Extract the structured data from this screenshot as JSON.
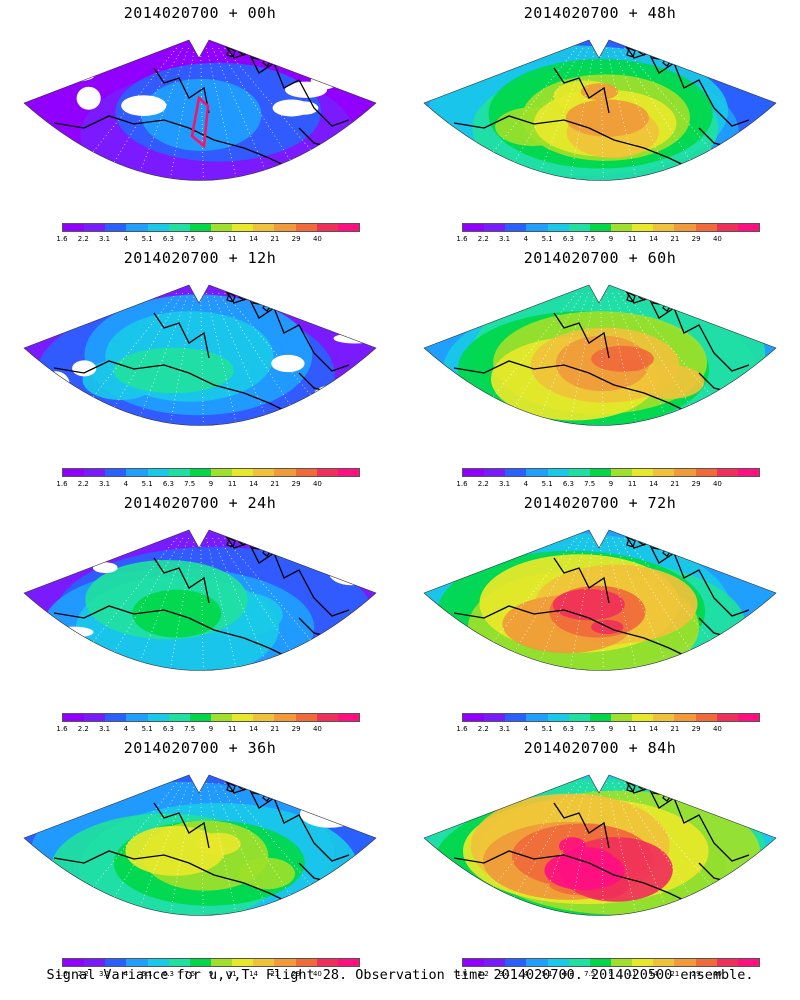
{
  "panels": [
    {
      "title": "2014020700 + 00h",
      "level": 0.1,
      "track": true
    },
    {
      "title": "2014020700 + 48h",
      "level": 0.62,
      "track": false
    },
    {
      "title": "2014020700 + 12h",
      "level": 0.22,
      "track": false
    },
    {
      "title": "2014020700 + 60h",
      "level": 0.72,
      "track": false
    },
    {
      "title": "2014020700 + 24h",
      "level": 0.34,
      "track": false
    },
    {
      "title": "2014020700 + 72h",
      "level": 0.8,
      "track": false
    },
    {
      "title": "2014020700 + 36h",
      "level": 0.46,
      "track": false
    },
    {
      "title": "2014020700 + 84h",
      "level": 0.88,
      "track": false
    }
  ],
  "colorbar": {
    "colors": [
      "#9100ff",
      "#7a1bff",
      "#2a60ff",
      "#1fa0ff",
      "#19c9e8",
      "#1fe0a0",
      "#00d84a",
      "#9ee02a",
      "#e8e82a",
      "#f0c23a",
      "#f09a3a",
      "#f06a3a",
      "#f0305a",
      "#ff1080"
    ],
    "labels": [
      "1.6",
      "2.2",
      "3.1",
      "4",
      "5.1",
      "6.3",
      "7.5",
      "9",
      "11",
      "14",
      "21",
      "29",
      "40"
    ]
  },
  "footer": "Signal Variance for u,v,T. Flight 28. Observation time 2014020700. 2014020500 ensemble."
}
